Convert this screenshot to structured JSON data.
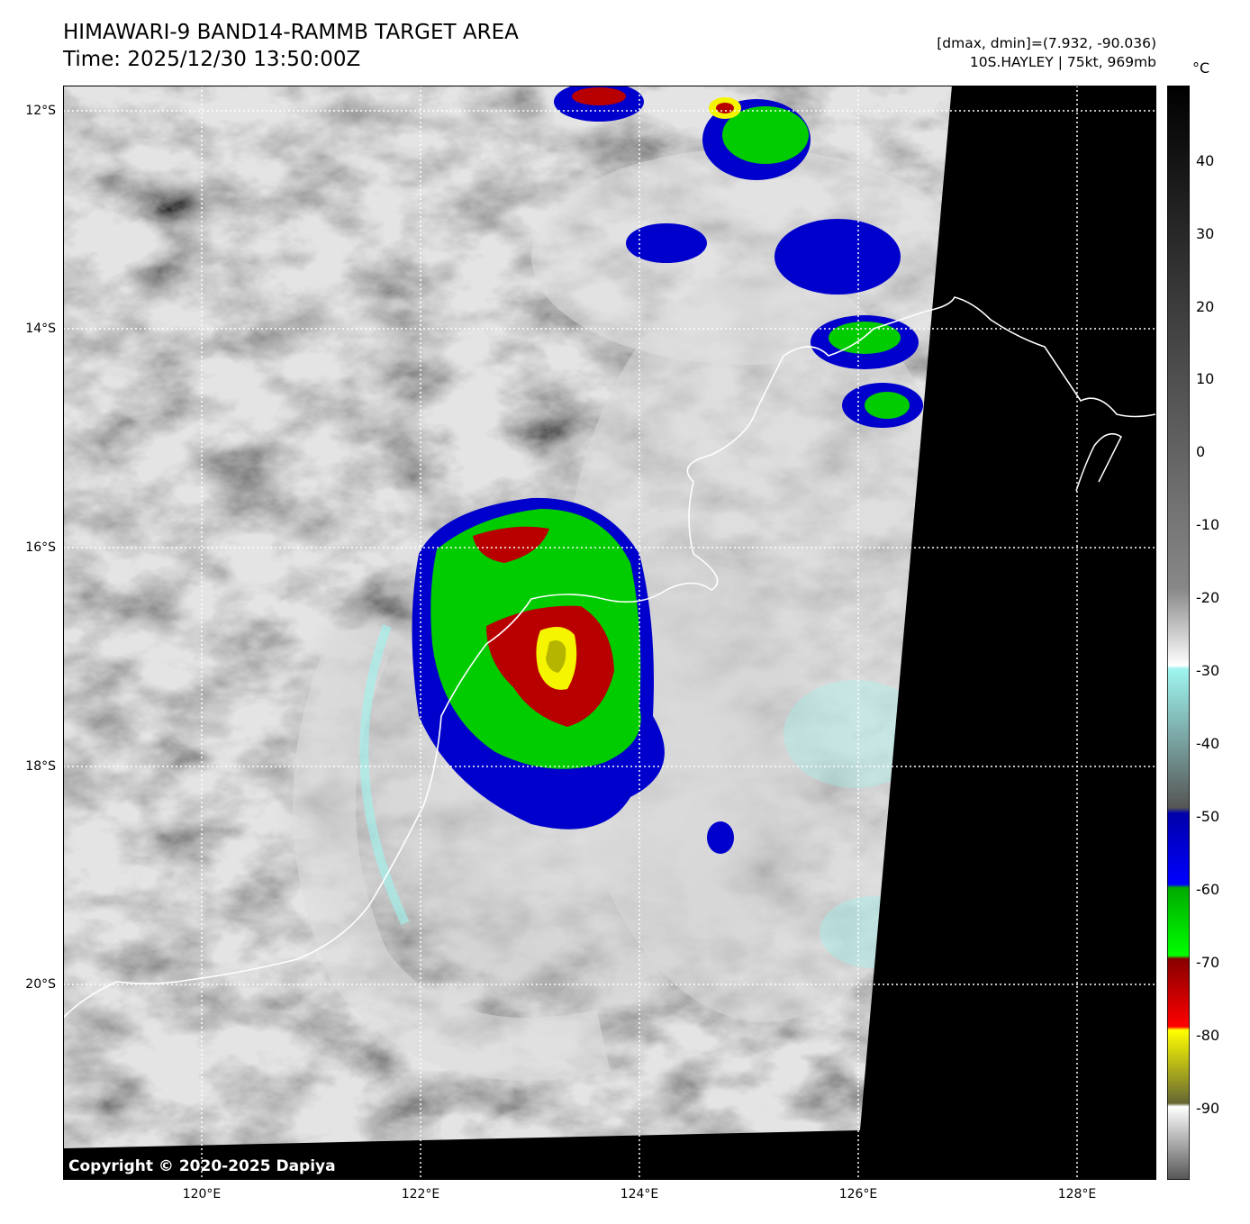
{
  "header": {
    "title_line1": "HIMAWARI-9 BAND14-RAMMB TARGET AREA",
    "title_line2": "Time: 2025/12/30 13:50:00Z",
    "info_line1": "[dmax, dmin]=(7.932, -90.036)",
    "info_line2": "10S.HAYLEY | 75kt, 969mb"
  },
  "map": {
    "lat_labels": [
      "12°S",
      "14°S",
      "16°S",
      "18°S",
      "20°S"
    ],
    "lon_labels": [
      "120°E",
      "122°E",
      "124°E",
      "126°E",
      "128°E"
    ],
    "storm": {
      "name": "10S.HAYLEY",
      "intensity": "75kt",
      "pressure": "969mb"
    },
    "copyright": "Copyright © 2020-2025 Dapiya"
  },
  "colorbar": {
    "unit": "°C",
    "ticks": [
      "40",
      "30",
      "20",
      "10",
      "0",
      "-10",
      "-20",
      "-30",
      "-40",
      "-50",
      "-60",
      "-70",
      "-80",
      "-90"
    ],
    "colors": {
      "warm": "#000000",
      "gray": "#7f7f7f",
      "white": "#ffffff",
      "cyan": "#9ff5f0",
      "blue": "#0000cc",
      "green": "#00cc00",
      "red": "#b80000",
      "yellow": "#f5f500"
    }
  }
}
